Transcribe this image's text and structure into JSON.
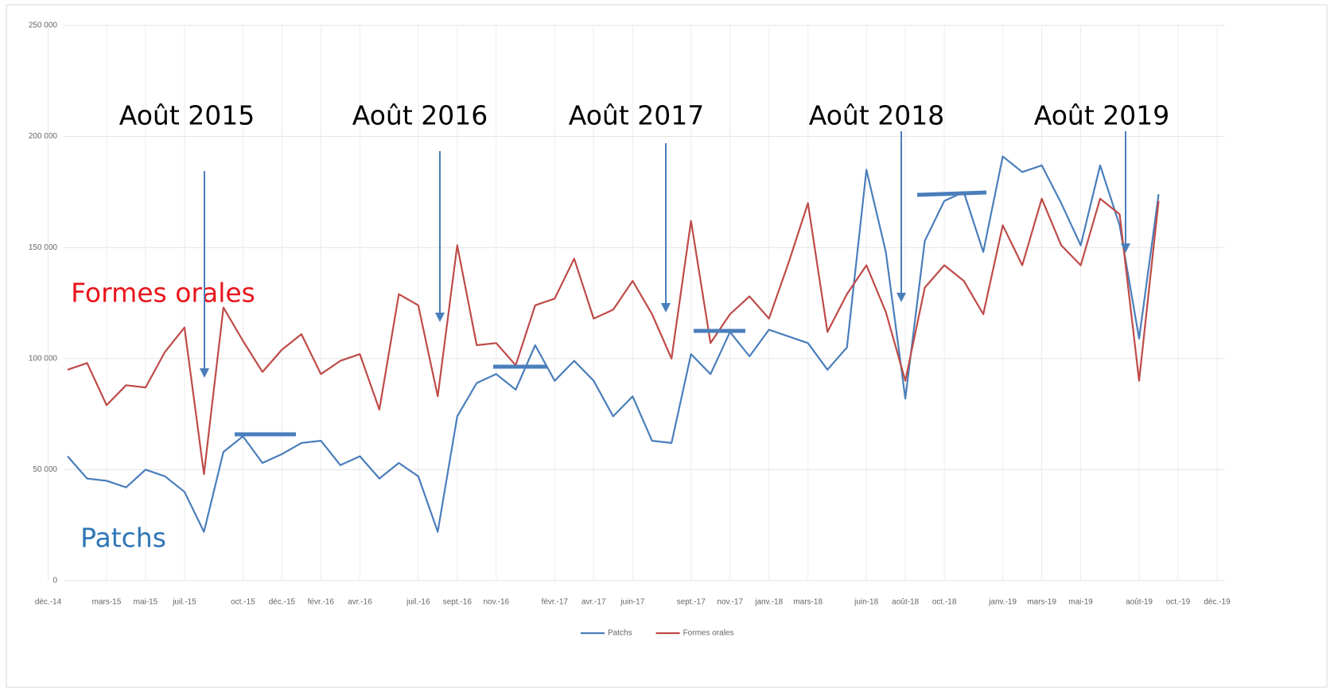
{
  "chart_data": {
    "type": "line",
    "categories": [
      "déc.-14",
      null,
      null,
      "mars-15",
      null,
      "mai-15",
      null,
      "juil.-15",
      null,
      null,
      "oct.-15",
      null,
      "déc.-15",
      null,
      "févr.-16",
      null,
      "avr.-16",
      null,
      null,
      "juil.-16",
      null,
      "sept.-16",
      null,
      "nov.-16",
      null,
      null,
      "févr.-17",
      null,
      "avr.-17",
      null,
      "juin-17",
      null,
      null,
      "sept.-17",
      null,
      "nov.-17",
      null,
      "janv.-18",
      null,
      "mars-18",
      null,
      null,
      "juin-18",
      null,
      "août-18",
      null,
      "oct.-18",
      null,
      null,
      "janv.-19",
      null,
      "mars-19",
      null,
      "mai-19",
      null,
      null,
      "août-19",
      null,
      "oct.-19",
      null,
      "déc.-19"
    ],
    "series": [
      {
        "name": "Patchs",
        "color": "#4a7ebb",
        "values": [
          null,
          56000,
          46000,
          45000,
          42000,
          50000,
          47000,
          40000,
          22000,
          58000,
          65000,
          53000,
          57000,
          62000,
          63000,
          52000,
          56000,
          46000,
          53000,
          47000,
          22000,
          74000,
          89000,
          93000,
          86000,
          106000,
          90000,
          99000,
          90000,
          74000,
          83000,
          63000,
          62000,
          102000,
          93000,
          112000,
          101000,
          113000,
          110000,
          107000,
          95000,
          105000,
          185000,
          148000,
          82000,
          153000,
          171000,
          175000,
          148000,
          191000,
          184000,
          187000,
          170000,
          151000,
          187000,
          160000,
          109000,
          174000,
          null,
          null,
          null
        ]
      },
      {
        "name": "Formes orales",
        "color": "#be4b48",
        "values": [
          null,
          95000,
          98000,
          79000,
          88000,
          87000,
          103000,
          114000,
          48000,
          123000,
          108000,
          94000,
          104000,
          111000,
          93000,
          99000,
          102000,
          77000,
          129000,
          124000,
          83000,
          151000,
          106000,
          107000,
          97000,
          124000,
          127000,
          145000,
          118000,
          122000,
          135000,
          120000,
          100000,
          162000,
          107000,
          120000,
          128000,
          118000,
          143000,
          170000,
          112000,
          129000,
          142000,
          121000,
          90000,
          132000,
          142000,
          135000,
          120000,
          160000,
          142000,
          172000,
          151000,
          142000,
          172000,
          165000,
          90000,
          171000,
          null,
          null,
          null
        ]
      }
    ],
    "ylim": [
      0,
      250000
    ],
    "yticks": [
      0,
      {
        "value": 50000,
        "label": "50 000"
      },
      {
        "value": 100000,
        "label": "100 000"
      },
      {
        "value": 150000,
        "label": "150 000"
      },
      {
        "value": 200000,
        "label": "200 000"
      },
      {
        "value": 250000,
        "label": "250 000"
      }
    ],
    "grid": true,
    "legend": "bottom",
    "annotations": [
      "Août 2015",
      "Août 2016",
      "Août 2017",
      "Août 2018",
      "Août 2019",
      "Formes orales",
      "Patchs"
    ]
  }
}
